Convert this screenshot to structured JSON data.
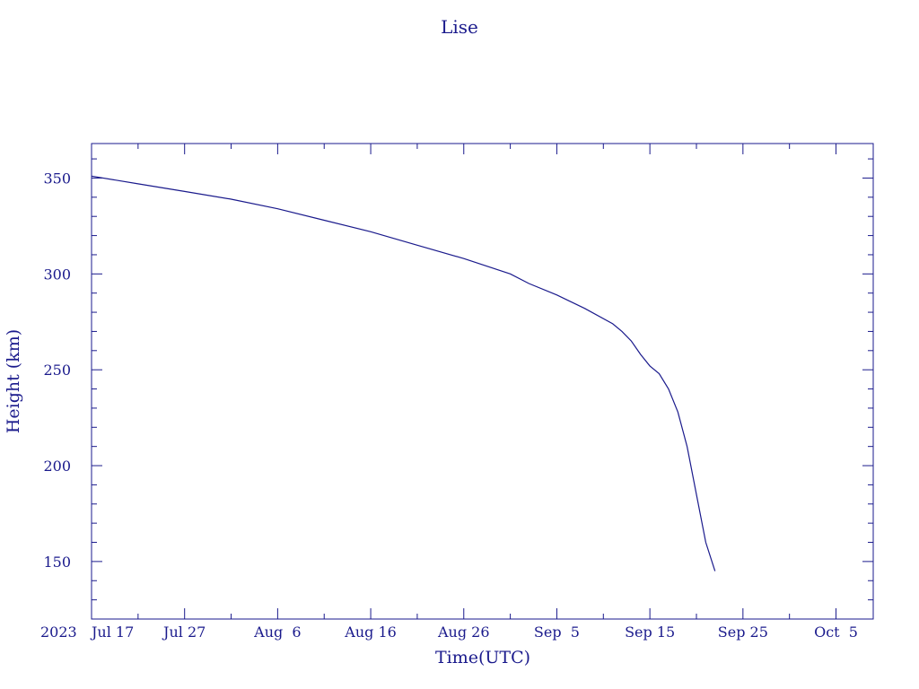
{
  "chart_data": {
    "type": "line",
    "title": "Lise",
    "xlabel": "Time(UTC)",
    "ylabel": "Height (km)",
    "year_label": "2023",
    "x_tick_labels": [
      {
        "date": "2023-07-17",
        "label": "Jul 17"
      },
      {
        "date": "2023-07-27",
        "label": "Jul 27"
      },
      {
        "date": "2023-08-06",
        "label": "Aug  6"
      },
      {
        "date": "2023-08-16",
        "label": "Aug 16"
      },
      {
        "date": "2023-08-26",
        "label": "Aug 26"
      },
      {
        "date": "2023-09-05",
        "label": "Sep  5"
      },
      {
        "date": "2023-09-15",
        "label": "Sep 15"
      },
      {
        "date": "2023-09-25",
        "label": "Sep 25"
      },
      {
        "date": "2023-10-05",
        "label": "Oct  5"
      }
    ],
    "xlim": [
      "2023-07-17",
      "2023-10-09"
    ],
    "ylim": [
      120,
      368
    ],
    "y_ticks": [
      150,
      200,
      250,
      300,
      350
    ],
    "grid": false,
    "color": "#1a1a8c",
    "series": [
      {
        "x": [
          "2023-07-17",
          "2023-07-22",
          "2023-07-27",
          "2023-08-01",
          "2023-08-06",
          "2023-08-11",
          "2023-08-16",
          "2023-08-21",
          "2023-08-26",
          "2023-08-31",
          "2023-09-02",
          "2023-09-05",
          "2023-09-08",
          "2023-09-11",
          "2023-09-12",
          "2023-09-13",
          "2023-09-14",
          "2023-09-15",
          "2023-09-16",
          "2023-09-17",
          "2023-09-18",
          "2023-09-19",
          "2023-09-20",
          "2023-09-21",
          "2023-09-22"
        ],
        "y": [
          351,
          347,
          343,
          339,
          334,
          328,
          322,
          315,
          308,
          300,
          295,
          289,
          282,
          274,
          270,
          265,
          258,
          252,
          248,
          240,
          228,
          210,
          185,
          160,
          145
        ]
      }
    ]
  }
}
